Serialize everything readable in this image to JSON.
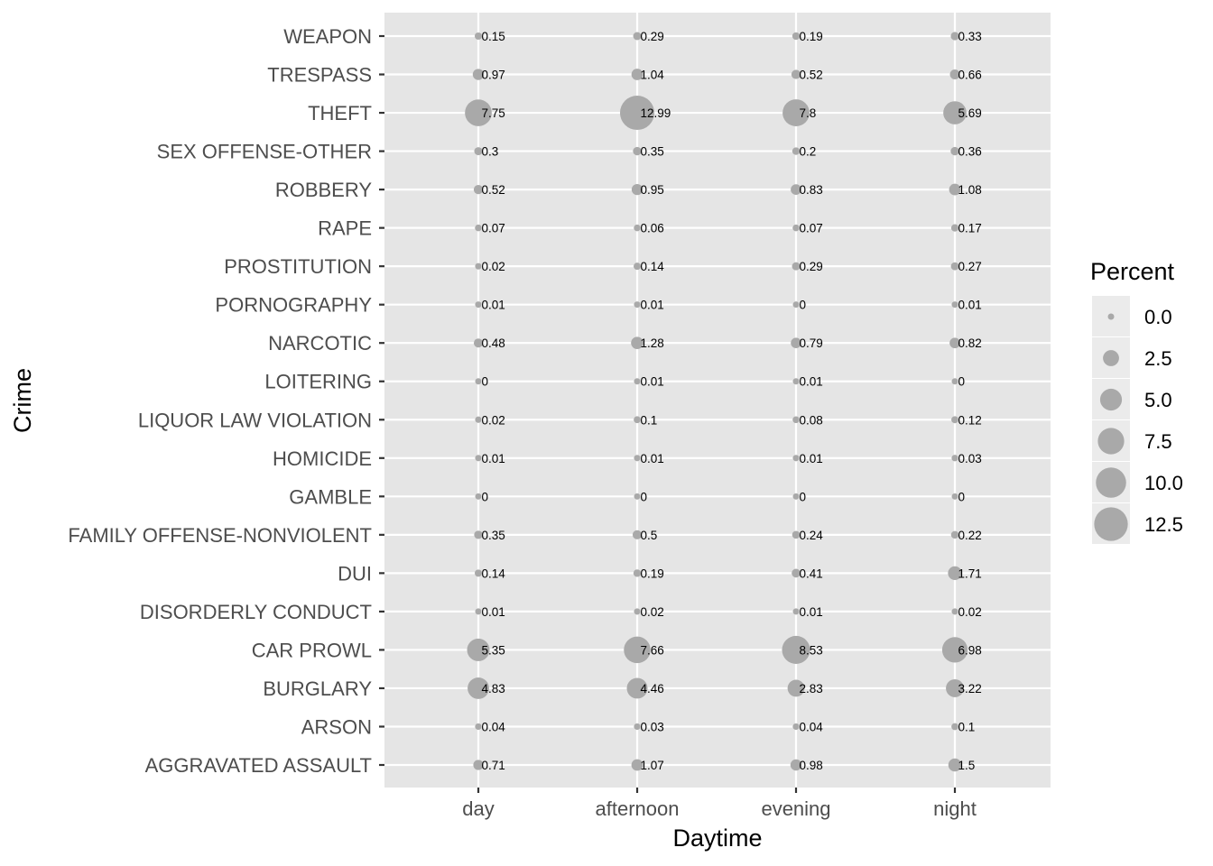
{
  "chart_data": {
    "type": "scatter",
    "xlabel": "Daytime",
    "ylabel": "Crime",
    "x_categories": [
      "day",
      "afternoon",
      "evening",
      "night"
    ],
    "y_categories": [
      "AGGRAVATED ASSAULT",
      "ARSON",
      "BURGLARY",
      "CAR PROWL",
      "DISORDERLY CONDUCT",
      "DUI",
      "FAMILY OFFENSE-NONVIOLENT",
      "GAMBLE",
      "HOMICIDE",
      "LIQUOR LAW VIOLATION",
      "LOITERING",
      "NARCOTIC",
      "PORNOGRAPHY",
      "PROSTITUTION",
      "RAPE",
      "ROBBERY",
      "SEX OFFENSE-OTHER",
      "THEFT",
      "TRESPASS",
      "WEAPON"
    ],
    "values": [
      [
        "0.71",
        "1.07",
        "0.98",
        "1.5"
      ],
      [
        "0.04",
        "0.03",
        "0.04",
        "0.1"
      ],
      [
        "4.83",
        "4.46",
        "2.83",
        "3.22"
      ],
      [
        "5.35",
        "7.66",
        "8.53",
        "6.98"
      ],
      [
        "0.01",
        "0.02",
        "0.01",
        "0.02"
      ],
      [
        "0.14",
        "0.19",
        "0.41",
        "1.71"
      ],
      [
        "0.35",
        "0.5",
        "0.24",
        "0.22"
      ],
      [
        "0",
        "0",
        "0",
        "0"
      ],
      [
        "0.01",
        "0.01",
        "0.01",
        "0.03"
      ],
      [
        "0.02",
        "0.1",
        "0.08",
        "0.12"
      ],
      [
        "0",
        "0.01",
        "0.01",
        "0"
      ],
      [
        "0.48",
        "1.28",
        "0.79",
        "0.82"
      ],
      [
        "0.01",
        "0.01",
        "0",
        "0.01"
      ],
      [
        "0.02",
        "0.14",
        "0.29",
        "0.27"
      ],
      [
        "0.07",
        "0.06",
        "0.07",
        "0.17"
      ],
      [
        "0.52",
        "0.95",
        "0.83",
        "1.08"
      ],
      [
        "0.3",
        "0.35",
        "0.2",
        "0.36"
      ],
      [
        "7.75",
        "12.99",
        "7.8",
        "5.69"
      ],
      [
        "0.97",
        "1.04",
        "0.52",
        "0.66"
      ],
      [
        "0.15",
        "0.29",
        "0.19",
        "0.33"
      ]
    ],
    "size_legend": {
      "title": "Percent",
      "breaks": [
        0,
        2.5,
        5,
        7.5,
        10,
        12.5
      ],
      "labels": [
        "0.0",
        "2.5",
        "5.0",
        "7.5",
        "10.0",
        "12.5"
      ]
    },
    "point_color": "#a9a9a9",
    "panel_background": "#e5e5e5",
    "grid": true,
    "legend_position": "right"
  }
}
